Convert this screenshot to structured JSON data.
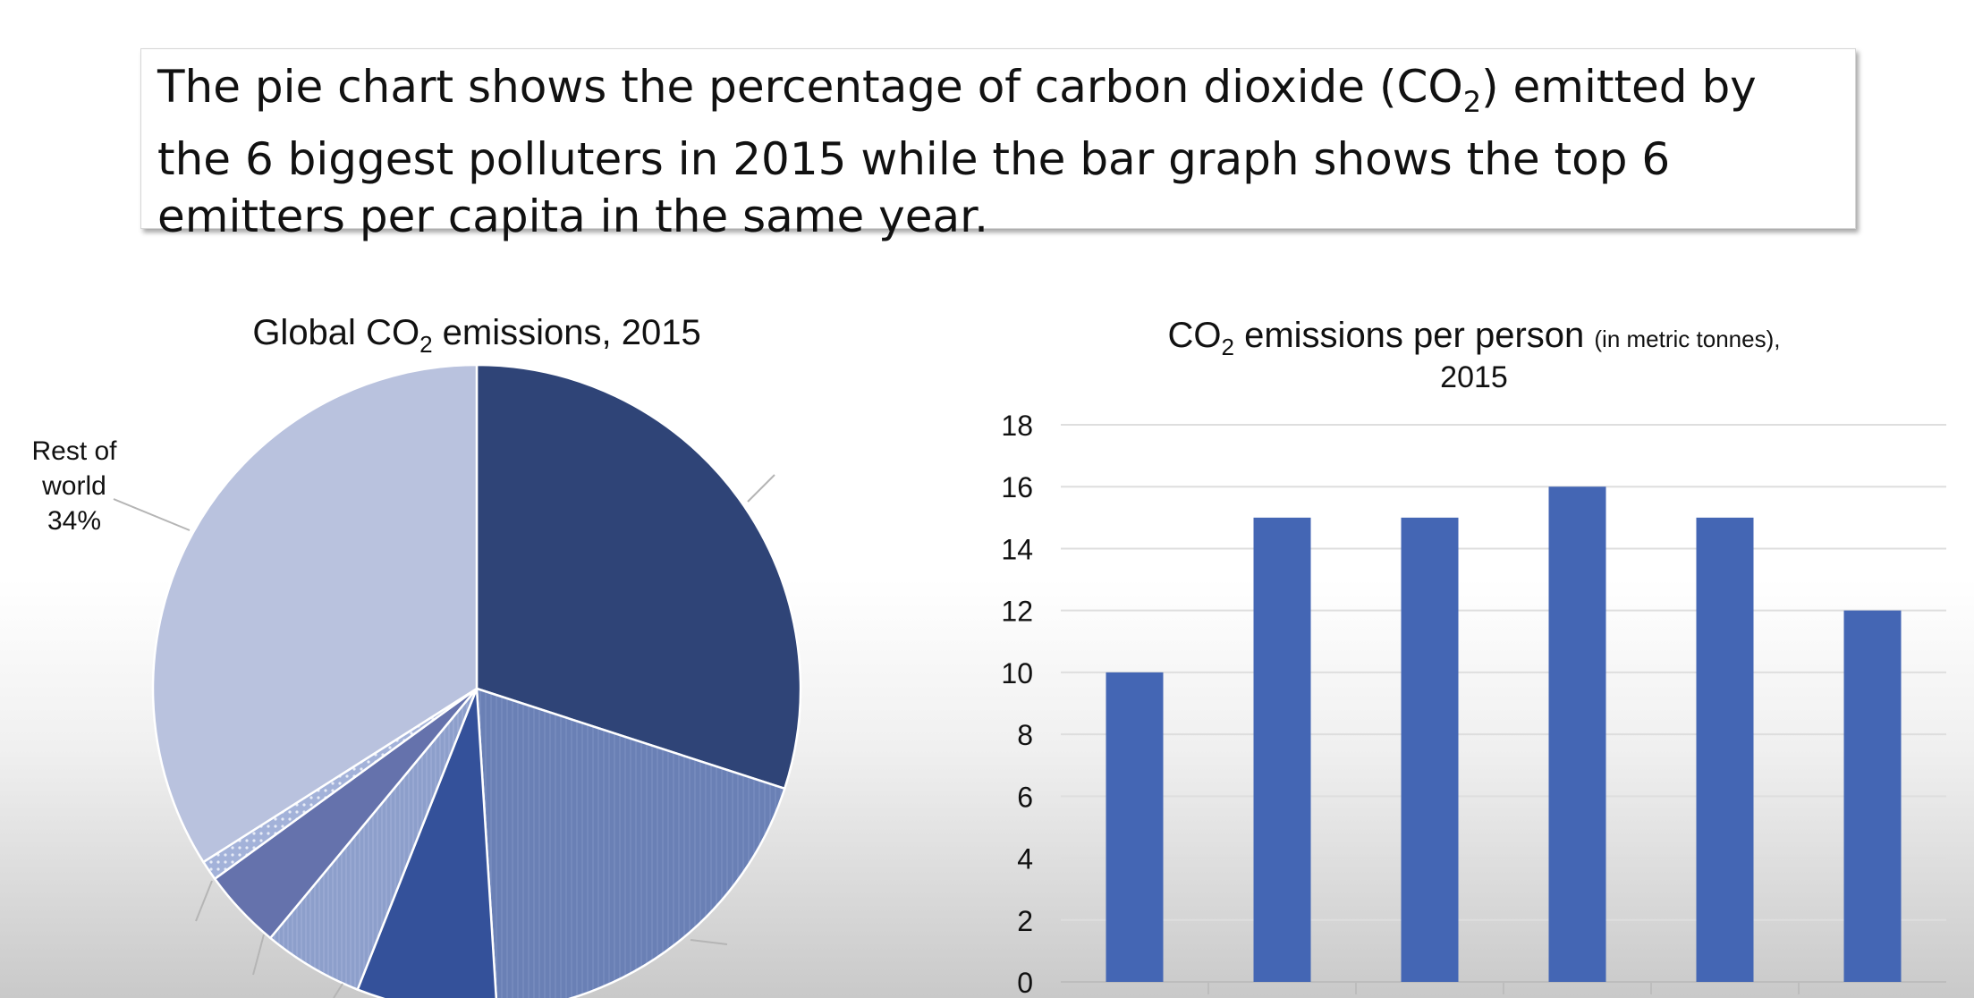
{
  "caption": {
    "part1": "The pie chart shows the percentage of carbon dioxide (CO",
    "sub": "2",
    "part2": ") emitted by the 6 biggest polluters in 2015 while the bar graph shows the top 6 emitters per capita in the same year."
  },
  "chart_data": [
    {
      "type": "pie",
      "title": {
        "prefix": "Global CO",
        "sub": "2",
        "suffix": " emissions, 2015"
      },
      "slices": [
        {
          "value": 30,
          "label": "",
          "color": "#2f4477"
        },
        {
          "value": 19,
          "label": "",
          "color": "#6a80b5"
        },
        {
          "value": 7,
          "label": "",
          "color": "#34519a"
        },
        {
          "value": 5,
          "label": "",
          "color": "#8d9fcb"
        },
        {
          "value": 4,
          "label": "",
          "color": "#6572ac"
        },
        {
          "value": 1,
          "label": "",
          "color": "#a3b2d9"
        },
        {
          "value": 34,
          "label": "Rest of world",
          "pct_label": "34%",
          "color": "#b9c2de"
        }
      ]
    },
    {
      "type": "bar",
      "title": {
        "prefix": "CO",
        "sub": "2",
        "suffix": " emissions per person ",
        "small": "(in metric tonnes),",
        "line2": "2015"
      },
      "values": [
        10,
        15,
        15,
        16,
        15,
        12
      ],
      "ylim": [
        0,
        18
      ],
      "yticks": [
        "0",
        "2",
        "4",
        "6",
        "8",
        "10",
        "12",
        "14",
        "16",
        "18"
      ],
      "grid": true,
      "bar_color": "#4466b4"
    }
  ]
}
